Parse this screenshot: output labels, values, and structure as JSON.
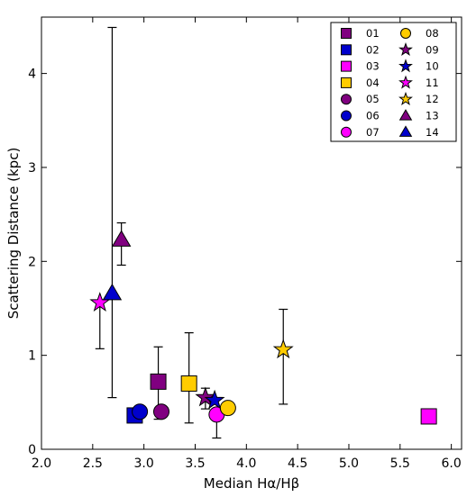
{
  "chart_data": {
    "type": "scatter",
    "xlabel": "Median Hα/Hβ",
    "ylabel": "Scattering Distance (kpc)",
    "xlim": [
      2.0,
      6.1
    ],
    "ylim": [
      0,
      4.6
    ],
    "xticks": [
      2.0,
      2.5,
      3.0,
      3.5,
      4.0,
      4.5,
      5.0,
      5.5,
      6.0
    ],
    "yticks": [
      0,
      1,
      2,
      3,
      4
    ],
    "xtick_labels": [
      "2.0",
      "2.5",
      "3.0",
      "3.5",
      "4.0",
      "4.5",
      "5.0",
      "5.5",
      "6.0"
    ],
    "ytick_labels": [
      "0",
      "1",
      "2",
      "3",
      "4"
    ],
    "grid": false,
    "legend_placement": "top-right",
    "series": [
      {
        "name": "01",
        "marker": "square",
        "color": "#800080",
        "x": 3.14,
        "y": 0.72,
        "err_low": 0.4,
        "err_high": 0.37
      },
      {
        "name": "02",
        "marker": "square",
        "color": "#0000cc",
        "x": 2.91,
        "y": 0.36
      },
      {
        "name": "03",
        "marker": "square",
        "color": "#ff00ff",
        "x": 5.78,
        "y": 0.35
      },
      {
        "name": "04",
        "marker": "square",
        "color": "#ffcc00",
        "x": 3.44,
        "y": 0.7,
        "err_low": 0.42,
        "err_high": 0.54
      },
      {
        "name": "05",
        "marker": "circle",
        "color": "#800080",
        "x": 3.17,
        "y": 0.4
      },
      {
        "name": "06",
        "marker": "circle",
        "color": "#0000cc",
        "x": 2.96,
        "y": 0.4
      },
      {
        "name": "07",
        "marker": "circle",
        "color": "#ff00ff",
        "x": 3.71,
        "y": 0.37,
        "err_low": 0.25,
        "err_high": 0.0
      },
      {
        "name": "08",
        "marker": "circle",
        "color": "#ffcc00",
        "x": 3.82,
        "y": 0.44
      },
      {
        "name": "09",
        "marker": "star",
        "color": "#800080",
        "x": 3.6,
        "y": 0.55,
        "err_low": 0.12,
        "err_high": 0.1
      },
      {
        "name": "10",
        "marker": "star",
        "color": "#0000cc",
        "x": 3.69,
        "y": 0.52
      },
      {
        "name": "11",
        "marker": "star",
        "color": "#ff00ff",
        "x": 2.57,
        "y": 1.56,
        "err_low": 0.49,
        "err_high": 0.0
      },
      {
        "name": "12",
        "marker": "star",
        "color": "#ffcc00",
        "x": 4.36,
        "y": 1.06,
        "err_low": 0.58,
        "err_high": 0.43
      },
      {
        "name": "13",
        "marker": "triangle",
        "color": "#800080",
        "x": 2.78,
        "y": 2.23,
        "err_low": 0.27,
        "err_high": 0.18
      },
      {
        "name": "14",
        "marker": "triangle",
        "color": "#0000cc",
        "x": 2.69,
        "y": 1.66,
        "err_low": 1.11,
        "err_high": 2.83
      }
    ]
  }
}
